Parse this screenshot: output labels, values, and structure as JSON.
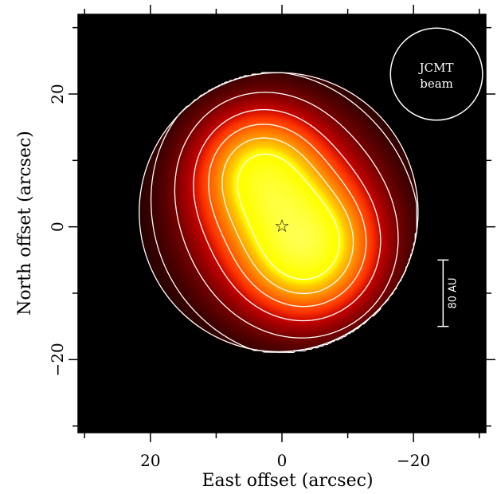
{
  "chart_data": {
    "type": "heatmap",
    "colormap": "hot",
    "background": "#000000",
    "contour_color": "#ffffff",
    "xlabel": "East offset (arcsec)",
    "ylabel": "North offset (arcsec)",
    "xlim": [
      31,
      -31
    ],
    "ylim": [
      -31,
      32
    ],
    "x_ticks": [
      20,
      0,
      -20
    ],
    "x_tick_labels": [
      "20",
      "0",
      "−20"
    ],
    "y_ticks": [
      20,
      0,
      -20
    ],
    "y_tick_labels": [
      "20",
      "0",
      "−20"
    ],
    "x_minor_ticks": [
      30,
      10,
      -10,
      -30
    ],
    "y_minor_ticks": [
      30,
      10,
      -10,
      -30
    ],
    "peaks": [
      {
        "x": 3.5,
        "y": 8.5,
        "amplitude": 0.78,
        "sigma": 6.0
      },
      {
        "x": -4.0,
        "y": -3.5,
        "amplitude": 1.0,
        "sigma": 6.5
      }
    ],
    "halo": {
      "x": 0.0,
      "y": 2.0,
      "amplitude": 0.6,
      "sigma": 10.0
    },
    "contour_levels": [
      0.06,
      0.14,
      0.26,
      0.4,
      0.55,
      0.72
    ],
    "star": {
      "x": 0,
      "y": 0,
      "symbol": "☆"
    },
    "beam": {
      "x": -23.5,
      "y": 23,
      "diameter_arcsec": 14,
      "label_line1": "JCMT",
      "label_line2": "beam"
    },
    "scale_bar": {
      "x": -24.5,
      "y_from": -5,
      "y_to": -15,
      "label": "80 AU"
    }
  }
}
